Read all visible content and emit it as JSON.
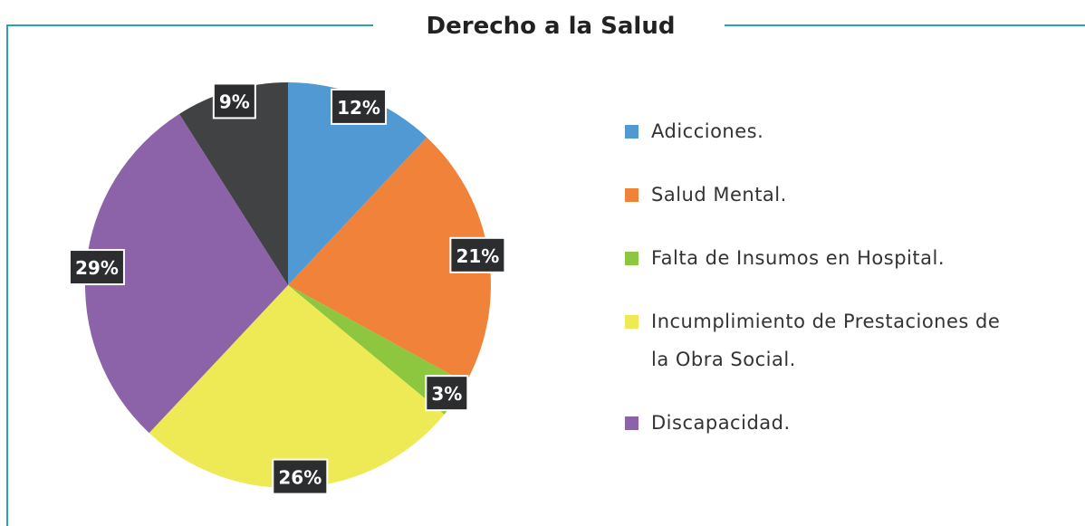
{
  "chart_data": {
    "type": "pie",
    "title": "Derecho a la Salud",
    "categories": [
      "Adicciones.",
      "Salud Mental.",
      "Falta de Insumos en Hospital.",
      "Incumplimiento de Prestaciones de la Obra Social.",
      "Discapacidad.",
      null
    ],
    "values": [
      12,
      21,
      3,
      26,
      29,
      9
    ],
    "value_labels": [
      "12%",
      "21%",
      "3%",
      "26%",
      "29%",
      "9%"
    ],
    "colors": [
      "#5199d3",
      "#f0823a",
      "#8dc63f",
      "#eeea55",
      "#8c62a8",
      "#414244"
    ]
  }
}
